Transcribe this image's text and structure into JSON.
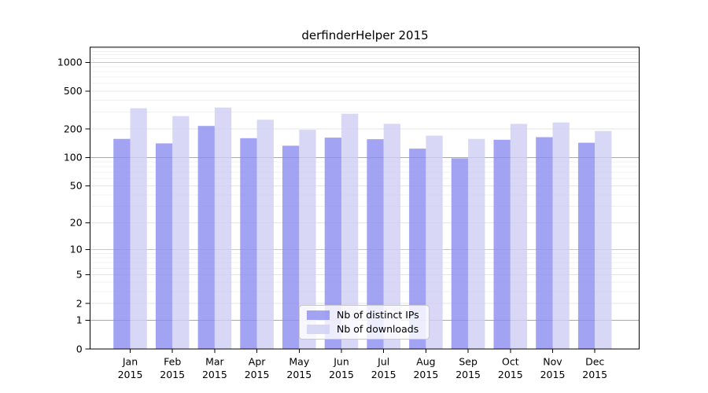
{
  "chart_data": {
    "type": "bar",
    "title": "derfinderHelper 2015",
    "year": "2015",
    "categories": [
      "Jan",
      "Feb",
      "Mar",
      "Apr",
      "May",
      "Jun",
      "Jul",
      "Aug",
      "Sep",
      "Oct",
      "Nov",
      "Dec"
    ],
    "series": [
      {
        "name": "Nb of distinct IPs",
        "color": "#8c8cf0",
        "opacity": 0.8,
        "values": [
          157,
          141,
          215,
          160,
          133,
          162,
          156,
          124,
          98,
          154,
          164,
          143
        ]
      },
      {
        "name": "Nb of downloads",
        "color": "#cecef4",
        "opacity": 0.8,
        "values": [
          330,
          273,
          336,
          250,
          196,
          289,
          226,
          170,
          157,
          226,
          234,
          190
        ]
      }
    ],
    "xlabel": "",
    "ylabel": "",
    "y_scale": "log1p",
    "y_ticks": [
      0,
      1,
      2,
      5,
      10,
      20,
      50,
      100,
      200,
      500,
      1000
    ],
    "y_minor_gridlines": [
      3,
      4,
      6,
      7,
      8,
      9,
      30,
      40,
      60,
      70,
      80,
      90,
      300,
      400,
      600,
      700,
      800,
      900,
      1100,
      1200,
      1300,
      1400
    ],
    "ylim": [
      0,
      1440
    ],
    "grid": true,
    "legend_position": "inside-bottom-center",
    "x_tick_label_line2": "2015"
  }
}
